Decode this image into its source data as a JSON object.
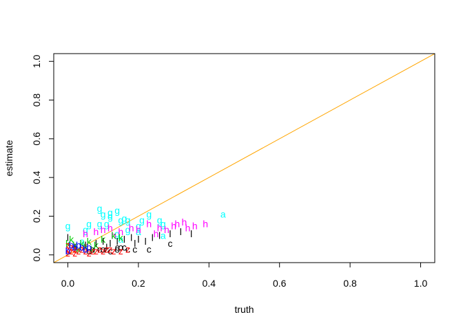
{
  "chart_data": {
    "type": "scatter",
    "title": "",
    "xlabel": "truth",
    "ylabel": "estimate",
    "xlim": [
      -0.04,
      1.04
    ],
    "ylim": [
      -0.04,
      1.04
    ],
    "x_ticks": [
      "0.0",
      "0.2",
      "0.4",
      "0.6",
      "0.8",
      "1.0"
    ],
    "y_ticks": [
      "0.0",
      "0.2",
      "0.4",
      "0.6",
      "0.8",
      "1.0"
    ],
    "reference_line": {
      "kind": "identity y = x",
      "color": "#FFA500"
    },
    "grid": false,
    "legend": "none",
    "point_markers": "letters",
    "series": [
      {
        "label": "g",
        "color": "#00FFFF",
        "points": [
          [
            0.0,
            0.15
          ],
          [
            0.06,
            0.16
          ],
          [
            0.09,
            0.24
          ],
          [
            0.1,
            0.21
          ],
          [
            0.12,
            0.22
          ],
          [
            0.12,
            0.2
          ],
          [
            0.14,
            0.23
          ],
          [
            0.15,
            0.18
          ],
          [
            0.16,
            0.19
          ],
          [
            0.17,
            0.18
          ],
          [
            0.21,
            0.18
          ],
          [
            0.23,
            0.21
          ],
          [
            0.26,
            0.18
          ],
          [
            0.27,
            0.16
          ],
          [
            0.09,
            0.16
          ],
          [
            0.11,
            0.16
          ],
          [
            0.05,
            0.13
          ],
          [
            0.2,
            0.15
          ],
          [
            0.17,
            0.13
          ],
          [
            0.14,
            0.11
          ]
        ]
      },
      {
        "label": "a",
        "color": "#00FFFF",
        "points": [
          [
            0.44,
            0.21
          ],
          [
            0.27,
            0.1
          ],
          [
            0.2,
            0.12
          ],
          [
            0.15,
            0.08
          ],
          [
            0.04,
            0.07
          ]
        ]
      },
      {
        "label": "h",
        "color": "#FF00FF",
        "points": [
          [
            0.05,
            0.11
          ],
          [
            0.08,
            0.12
          ],
          [
            0.1,
            0.13
          ],
          [
            0.12,
            0.14
          ],
          [
            0.15,
            0.12
          ],
          [
            0.18,
            0.14
          ],
          [
            0.2,
            0.13
          ],
          [
            0.23,
            0.16
          ],
          [
            0.26,
            0.14
          ],
          [
            0.28,
            0.13
          ],
          [
            0.3,
            0.15
          ],
          [
            0.31,
            0.16
          ],
          [
            0.33,
            0.17
          ],
          [
            0.34,
            0.14
          ],
          [
            0.36,
            0.15
          ],
          [
            0.39,
            0.16
          ],
          [
            0.25,
            0.11
          ],
          [
            0.13,
            0.1
          ]
        ]
      },
      {
        "label": "k",
        "color": "#00CD00",
        "points": [
          [
            0.0,
            0.06
          ],
          [
            0.01,
            0.08
          ],
          [
            0.02,
            0.05
          ],
          [
            0.04,
            0.06
          ],
          [
            0.05,
            0.04
          ],
          [
            0.06,
            0.07
          ],
          [
            0.08,
            0.05
          ],
          [
            0.1,
            0.08
          ],
          [
            0.13,
            0.1
          ],
          [
            0.15,
            0.09
          ],
          [
            0.03,
            0.03
          ],
          [
            0.07,
            0.03
          ]
        ]
      },
      {
        "label": "l",
        "color": "#000000",
        "points": [
          [
            0.0,
            0.09
          ],
          [
            0.02,
            0.04
          ],
          [
            0.05,
            0.05
          ],
          [
            0.08,
            0.06
          ],
          [
            0.1,
            0.07
          ],
          [
            0.12,
            0.06
          ],
          [
            0.14,
            0.07
          ],
          [
            0.16,
            0.08
          ],
          [
            0.18,
            0.09
          ],
          [
            0.2,
            0.08
          ],
          [
            0.22,
            0.07
          ],
          [
            0.24,
            0.09
          ],
          [
            0.26,
            0.1
          ],
          [
            0.29,
            0.11
          ],
          [
            0.32,
            0.12
          ],
          [
            0.35,
            0.11
          ],
          [
            0.19,
            0.06
          ],
          [
            0.11,
            0.04
          ]
        ]
      },
      {
        "label": "c",
        "color": "#000000",
        "points": [
          [
            0.06,
            0.02
          ],
          [
            0.09,
            0.03
          ],
          [
            0.11,
            0.03
          ],
          [
            0.14,
            0.04
          ],
          [
            0.16,
            0.04
          ],
          [
            0.17,
            0.03
          ],
          [
            0.19,
            0.03
          ],
          [
            0.23,
            0.03
          ],
          [
            0.29,
            0.06
          ],
          [
            0.12,
            0.02
          ]
        ]
      },
      {
        "label": "o",
        "color": "#000000",
        "points": [
          [
            0.07,
            0.03
          ],
          [
            0.1,
            0.03
          ],
          [
            0.14,
            0.03
          ],
          [
            0.15,
            0.04
          ]
        ]
      },
      {
        "label": "z",
        "color": "#FF0000",
        "points": [
          [
            0.0,
            0.01
          ],
          [
            0.0,
            0.03
          ],
          [
            0.01,
            0.02
          ],
          [
            0.02,
            0.01
          ],
          [
            0.03,
            0.02
          ],
          [
            0.04,
            0.03
          ],
          [
            0.05,
            0.02
          ],
          [
            0.06,
            0.01
          ],
          [
            0.07,
            0.02
          ],
          [
            0.08,
            0.02
          ],
          [
            0.09,
            0.03
          ],
          [
            0.1,
            0.02
          ],
          [
            0.11,
            0.03
          ],
          [
            0.12,
            0.03
          ],
          [
            0.13,
            0.02
          ],
          [
            0.15,
            0.02
          ],
          [
            0.17,
            0.03
          ],
          [
            0.0,
            0.05
          ],
          [
            0.01,
            0.04
          ],
          [
            0.02,
            0.03
          ]
        ]
      },
      {
        "label": "b",
        "color": "#0000FF",
        "points": [
          [
            0.0,
            0.02
          ],
          [
            0.01,
            0.05
          ],
          [
            0.02,
            0.04
          ],
          [
            0.03,
            0.05
          ],
          [
            0.04,
            0.04
          ],
          [
            0.05,
            0.03
          ],
          [
            0.06,
            0.04
          ]
        ]
      }
    ]
  }
}
